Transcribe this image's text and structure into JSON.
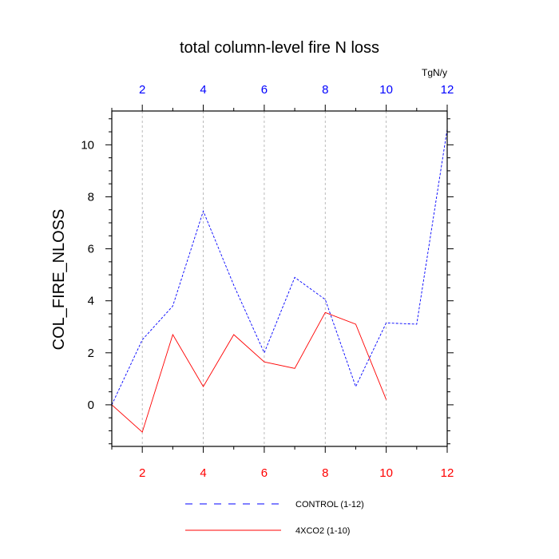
{
  "chart_data": {
    "type": "line",
    "title": "total column-level fire N loss",
    "ylabel": "COL_FIRE_NLOSS",
    "units": "TgN/y",
    "xlim": [
      1,
      12
    ],
    "ylim": [
      -1.6,
      11.3
    ],
    "x_ticks": [
      2,
      4,
      6,
      8,
      10,
      12
    ],
    "x_tick_labels": [
      "2",
      "4",
      "6",
      "8",
      "10",
      "12"
    ],
    "y_ticks": [
      0,
      2,
      4,
      6,
      8,
      10
    ],
    "y_tick_labels": [
      "0",
      "2",
      "4",
      "6",
      "8",
      "10"
    ],
    "vertical_gridlines_at": [
      2,
      4,
      6,
      8,
      10
    ],
    "colors": {
      "bottom_axis_labels": "#ff0000",
      "top_axis_labels": "#0000ff"
    },
    "series": [
      {
        "name": "CONTROL (1-12)",
        "color": "#0000ff",
        "dash": "dashed",
        "x": [
          1,
          2,
          3,
          4,
          5,
          6,
          7,
          8,
          9,
          10,
          11,
          12
        ],
        "y": [
          0.0,
          2.5,
          3.8,
          7.45,
          4.6,
          2.0,
          4.9,
          4.05,
          0.7,
          3.15,
          3.1,
          10.6
        ]
      },
      {
        "name": "4XCO2 (1-10)",
        "color": "#ff0000",
        "dash": "solid",
        "x": [
          1,
          2,
          3,
          4,
          5,
          6,
          7,
          8,
          9,
          10
        ],
        "y": [
          0.0,
          -1.05,
          2.7,
          0.7,
          2.7,
          1.65,
          1.4,
          3.55,
          3.1,
          0.2
        ]
      }
    ],
    "legend_position": "bottom"
  }
}
